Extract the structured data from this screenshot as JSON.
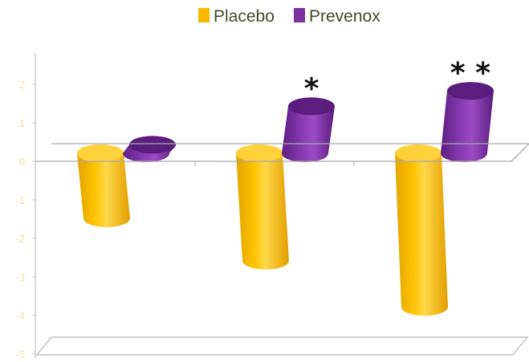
{
  "chart_data": {
    "type": "bar",
    "title": "",
    "xlabel": "",
    "ylabel": "",
    "categories": [
      "",
      "",
      ""
    ],
    "series": [
      {
        "name": "Placebo",
        "values": [
          -1.5,
          -2.6,
          -3.8
        ],
        "color": "#f6b800",
        "side_color": "#ffd23d"
      },
      {
        "name": "Prevenox",
        "values": [
          0.2,
          1.2,
          1.6
        ],
        "color": "#7b2fa1",
        "side_color": "#5a1c7a"
      }
    ],
    "significance": [
      "",
      "*",
      "* *"
    ],
    "ylim": [
      -5,
      2
    ],
    "yticks": [
      "-5",
      "-4",
      "-3",
      "-2",
      "-1",
      "0",
      "1",
      "2"
    ],
    "legend": "top",
    "grid": false
  }
}
